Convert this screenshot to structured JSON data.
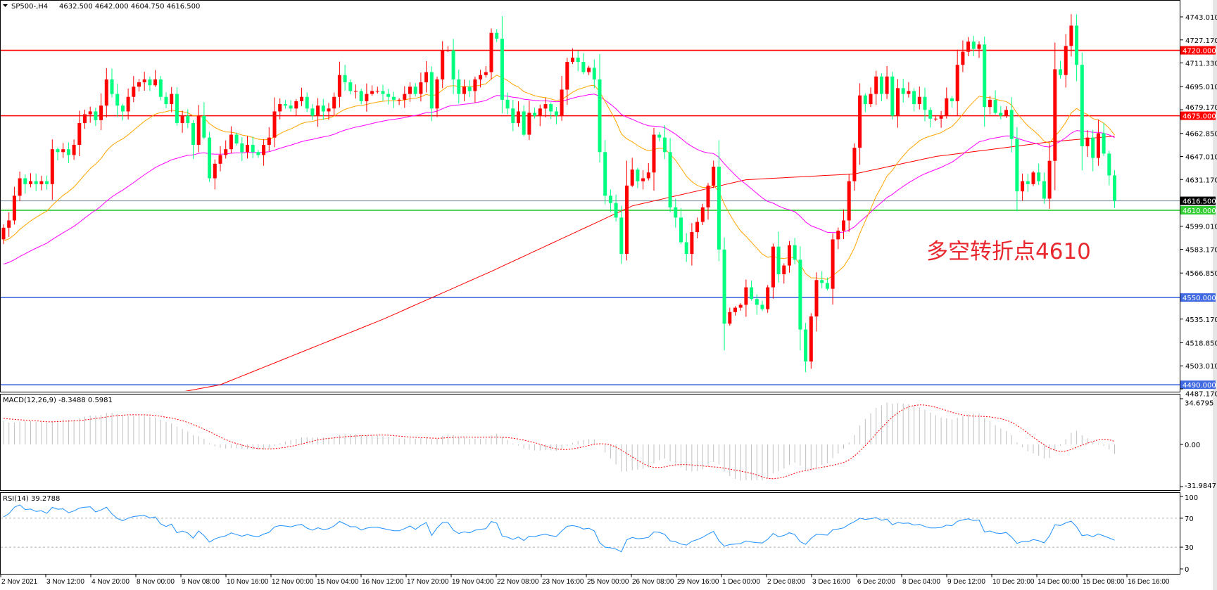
{
  "header": {
    "symbol": "SP500-,H4",
    "ohlc": "4632.500 4642.000 4604.750 4616.500"
  },
  "annotation": "多空转折点4610",
  "colors": {
    "up_candle": "#ff0000",
    "down_candle": "#00ff7f",
    "ma_fast": "#ffa500",
    "ma_mid": "#ff00ff",
    "ma_slow": "#ff0000",
    "macd_hist": "#c0c0c0",
    "macd_signal": "#ff0000",
    "rsi_line": "#1e90ff"
  },
  "chart_data": {
    "type": "candlestick",
    "first_open": 4590,
    "closes": [
      4598,
      4603,
      4620,
      4632,
      4628,
      4630,
      4628,
      4630,
      4628,
      4652,
      4650,
      4652,
      4648,
      4655,
      4670,
      4676,
      4678,
      4672,
      4682,
      4700,
      4690,
      4682,
      4678,
      4688,
      4695,
      4698,
      4700,
      4696,
      4700,
      4688,
      4683,
      4690,
      4670,
      4675,
      4670,
      4655,
      4675,
      4660,
      4632,
      4642,
      4648,
      4652,
      4662,
      4656,
      4650,
      4655,
      4650,
      4648,
      4655,
      4660,
      4678,
      4683,
      4682,
      4680,
      4685,
      4688,
      4680,
      4675,
      4682,
      4678,
      4680,
      4688,
      4703,
      4698,
      4692,
      4692,
      4685,
      4690,
      4692,
      4692,
      4690,
      4688,
      4686,
      4686,
      4690,
      4695,
      4690,
      4698,
      4705,
      4680,
      4700,
      4720,
      4720,
      4700,
      4690,
      4695,
      4692,
      4700,
      4703,
      4705,
      4732,
      4728,
      4686,
      4680,
      4670,
      4678,
      4662,
      4677,
      4675,
      4680,
      4683,
      4678,
      4675,
      4693,
      4712,
      4715,
      4712,
      4705,
      4708,
      4700,
      4650,
      4620,
      4615,
      4605,
      4580,
      4627,
      4638,
      4630,
      4632,
      4636,
      4662,
      4660,
      4650,
      4612,
      4605,
      4588,
      4580,
      4595,
      4602,
      4612,
      4627,
      4640,
      4583,
      4532,
      4540,
      4543,
      4545,
      4557,
      4549,
      4545,
      4542,
      4557,
      4585,
      4566,
      4572,
      4586,
      4576,
      4528,
      4506,
      4537,
      4562,
      4560,
      4556,
      4590,
      4596,
      4603,
      4630,
      4653,
      4689,
      4683,
      4690,
      4702,
      4690,
      4702,
      4675,
      4694,
      4690,
      4692,
      4683,
      4688,
      4679,
      4673,
      4673,
      4675,
      4687,
      4685,
      4710,
      4719,
      4726,
      4721,
      4724,
      4681,
      4686,
      4677,
      4675,
      4679,
      4659,
      4623,
      4630,
      4628,
      4636,
      4630,
      4618,
      4644,
      4707,
      4703,
      4723,
      4737,
      4710,
      4654,
      4660,
      4646,
      4663,
      4649,
      4634,
      4616.5
    ],
    "ma_slow_anchors": [
      [
        0,
        4462
      ],
      [
        40,
        4490
      ],
      [
        70,
        4535
      ],
      [
        90,
        4568
      ],
      [
        116,
        4613
      ],
      [
        137,
        4631
      ],
      [
        157,
        4635
      ],
      [
        172,
        4647
      ],
      [
        193,
        4657
      ],
      [
        205,
        4661
      ]
    ],
    "price_range": [
      4487.17,
      4743.01
    ],
    "price_ticks": [
      "4743.010",
      "4727.170",
      "4711.330",
      "4695.010",
      "4679.170",
      "4662.850",
      "4647.010",
      "4631.170",
      "4599.010",
      "4583.170",
      "4566.850",
      "4535.170",
      "4518.850",
      "4503.010",
      "4487.170"
    ],
    "levels": [
      {
        "price": 4720,
        "label": "4720.000",
        "color": "#ff0000"
      },
      {
        "price": 4675,
        "label": "4675.000",
        "color": "#ff0000"
      },
      {
        "price": 4616.5,
        "label": "4616.500",
        "color": "#778899",
        "badge": "#000000"
      },
      {
        "price": 4610,
        "label": "4610.000",
        "color": "#32cd32"
      },
      {
        "price": 4550,
        "label": "4550.000",
        "color": "#4169e1"
      },
      {
        "price": 4490,
        "label": "4490.000",
        "color": "#4169e1"
      }
    ],
    "time_labels": [
      "2 Nov 2021",
      "3 Nov 12:00",
      "4 Nov 20:00",
      "8 Nov 00:00",
      "9 Nov 08:00",
      "10 Nov 16:00",
      "12 Nov 00:00",
      "15 Nov 04:00",
      "16 Nov 12:00",
      "17 Nov 20:00",
      "19 Nov 04:00",
      "22 Nov 08:00",
      "23 Nov 16:00",
      "25 Nov 00:00",
      "26 Nov 08:00",
      "29 Nov 16:00",
      "1 Dec 00:00",
      "2 Dec 08:00",
      "3 Dec 16:00",
      "6 Dec 20:00",
      "8 Dec 04:00",
      "9 Dec 12:00",
      "10 Dec 20:00",
      "14 Dec 00:00",
      "15 Dec 08:00",
      "16 Dec 16:00"
    ],
    "macd": {
      "label": "MACD(12,26,9) -8.3488 0.5981",
      "range": [
        -31.9847,
        34.6795
      ],
      "ticks": [
        "34.6795",
        "0.00",
        "-31.9847"
      ]
    },
    "rsi": {
      "label": "RSI(14) 39.2788",
      "ticks": [
        "100",
        "70",
        "30",
        "0"
      ],
      "levels": [
        70,
        30
      ]
    }
  }
}
